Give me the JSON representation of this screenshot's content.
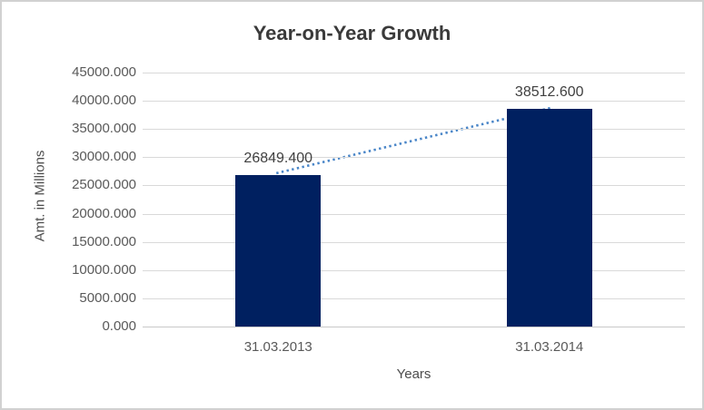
{
  "window": {
    "background": "#ffffff",
    "border_color": "#d1d1d1"
  },
  "chart": {
    "title": "Year-on-Year Growth",
    "y_axis_title": "Amt. in Millions",
    "x_axis_title": "Years"
  },
  "chart_data": {
    "type": "bar",
    "title": "Year-on-Year Growth",
    "xlabel": "Years",
    "ylabel": "Amt. in Millions",
    "categories": [
      "31.03.2013",
      "31.03.2014"
    ],
    "values": [
      26849.4,
      38512.6
    ],
    "data_labels": [
      "26849.400",
      "38512.600"
    ],
    "ylim": [
      0,
      45000
    ],
    "ytick_step": 5000,
    "ytick_labels": [
      "45000.000",
      "40000.000",
      "35000.000",
      "30000.000",
      "25000.000",
      "20000.000",
      "15000.000",
      "10000.000",
      "5000.000",
      "0.000"
    ],
    "grid": true,
    "legend": "none",
    "trendline": {
      "type": "linear",
      "style": "dotted"
    },
    "colors": {
      "bar": "#002060",
      "trendline": "#4a86c8",
      "gridline": "#d9d9d9",
      "axis_line": "#c9c9c9",
      "title_text": "#3a3a3a",
      "tick_text": "#595959",
      "data_label_text": "#404040",
      "axis_title_text": "#4d4d4d"
    }
  }
}
